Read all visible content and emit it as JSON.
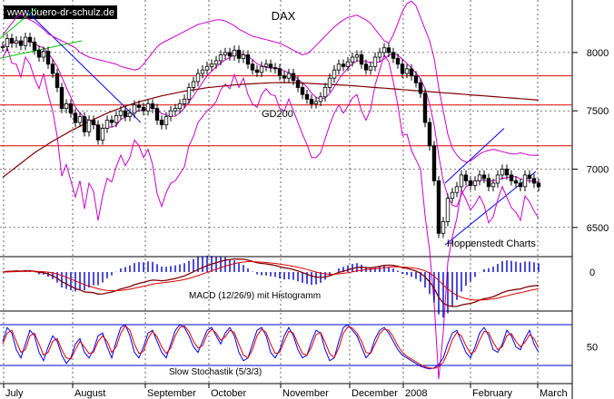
{
  "chart_data": {
    "type": "line",
    "title": "DAX",
    "watermark": "www.buero-dr-schulz.de",
    "source": "Hoppenstedt Charts",
    "x_labels": [
      "July",
      "August",
      "September",
      "October",
      "November",
      "December",
      "2008",
      "February",
      "March"
    ],
    "colors": {
      "candles": "#000000",
      "bollinger": "#cc00cc",
      "gd200": "#800000",
      "horizontal": "#dd0000",
      "trend_green": "#00cc00",
      "trend_blue": "#0000ff",
      "macd": "#800000",
      "signal": "#dd0000",
      "histogram": "#0000cc",
      "stoch_k": "#0000ff",
      "stoch_d": "#dd0000",
      "grid": "#000000"
    },
    "main": {
      "y_ticks": [
        8000,
        7500,
        7000,
        6500
      ],
      "ylim": [
        6250,
        8450
      ],
      "horizontal_lines": [
        7800,
        7550,
        7200
      ],
      "gd200_label": "GD200",
      "price": [
        8050,
        8120,
        8080,
        8100,
        8060,
        8130,
        8090,
        8020,
        7960,
        8010,
        7900,
        7820,
        7700,
        7520,
        7560,
        7480,
        7400,
        7450,
        7320,
        7420,
        7380,
        7250,
        7350,
        7420,
        7400,
        7460,
        7500,
        7450,
        7480,
        7550,
        7530,
        7500,
        7560,
        7520,
        7420,
        7380,
        7450,
        7500,
        7520,
        7560,
        7600,
        7700,
        7750,
        7820,
        7850,
        7880,
        7900,
        7930,
        7980,
        8000,
        7970,
        8020,
        7950,
        7980,
        7900,
        7850,
        7830,
        7880,
        7900,
        7870,
        7860,
        7800,
        7780,
        7820,
        7760,
        7700,
        7640,
        7600,
        7560,
        7580,
        7620,
        7700,
        7780,
        7850,
        7900,
        7880,
        7920,
        7960,
        7980,
        7900,
        7850,
        7880,
        7960,
        8000,
        8040,
        8000,
        7950,
        7900,
        7820,
        7860,
        7800,
        7740,
        7650,
        7400,
        7200,
        6900,
        6450,
        6550,
        6750,
        6800,
        6850,
        6950,
        6900,
        6860,
        6900,
        6950,
        6920,
        6850,
        6880,
        6950,
        7000,
        6950,
        6900,
        6880,
        6850,
        6950,
        6920,
        6880,
        6850
      ],
      "gd200": [
        6930,
        6960,
        6990,
        7020,
        7050,
        7080,
        7110,
        7140,
        7165,
        7190,
        7215,
        7240,
        7262,
        7284,
        7306,
        7328,
        7348,
        7368,
        7388,
        7408,
        7426,
        7444,
        7462,
        7480,
        7495,
        7510,
        7525,
        7540,
        7552,
        7564,
        7576,
        7588,
        7598,
        7608,
        7618,
        7628,
        7636,
        7644,
        7652,
        7660,
        7668,
        7674,
        7680,
        7686,
        7692,
        7698,
        7702,
        7706,
        7710,
        7714,
        7718,
        7722,
        7725,
        7728,
        7730,
        7732,
        7734,
        7736,
        7738,
        7740,
        7741,
        7742,
        7742,
        7742,
        7741,
        7740,
        7738,
        7736,
        7734,
        7732,
        7730,
        7728,
        7726,
        7724,
        7722,
        7720,
        7718,
        7715,
        7712,
        7709,
        7706,
        7703,
        7700,
        7697,
        7694,
        7691,
        7688,
        7685,
        7682,
        7679,
        7676,
        7673,
        7670,
        7667,
        7664,
        7661,
        7658,
        7655,
        7652,
        7649,
        7646,
        7643,
        7640,
        7637,
        7634,
        7631,
        7628,
        7625,
        7622,
        7619,
        7616,
        7613,
        7610,
        7607,
        7604,
        7601,
        7598,
        7595,
        7592
      ],
      "bb_upper": [
        8150,
        8200,
        8250,
        8300,
        8330,
        8300,
        8280,
        8260,
        8230,
        8200,
        8160,
        8140,
        8120,
        8100,
        8080,
        8060,
        8040,
        8000,
        7980,
        7960,
        7950,
        7940,
        7930,
        7920,
        7910,
        7900,
        7880,
        7870,
        7860,
        7850,
        7860,
        7900,
        7950,
        8000,
        8050,
        8080,
        8100,
        8120,
        8140,
        8160,
        8180,
        8200,
        8220,
        8240,
        8250,
        8260,
        8270,
        8280,
        8280,
        8270,
        8250,
        8230,
        8200,
        8180,
        8160,
        8140,
        8130,
        8120,
        8110,
        8100,
        8090,
        8080,
        8060,
        8040,
        8020,
        8000,
        7980,
        7990,
        8020,
        8060,
        8100,
        8140,
        8180,
        8220,
        8250,
        8280,
        8300,
        8310,
        8320,
        8300,
        8280,
        8250,
        8200,
        8150,
        8100,
        8080,
        8150,
        8250,
        8350,
        8420,
        8440,
        8400,
        8300,
        8200,
        8100,
        7950,
        7700,
        7500,
        7300,
        7180,
        7120,
        7080,
        7060,
        7070,
        7100,
        7130,
        7150,
        7160,
        7170,
        7160,
        7150,
        7140,
        7130,
        7130,
        7140,
        7130,
        7120,
        7120,
        7120
      ]
    },
    "macd": {
      "zero_label": "0",
      "label": "MACD (12/26/9) mit Histogramm"
    },
    "stochastic": {
      "y_tick": 50,
      "label": "Slow Stochastik (5/3/3)",
      "k": [
        60,
        85,
        75,
        45,
        30,
        55,
        80,
        70,
        40,
        25,
        50,
        70,
        60,
        35,
        20,
        30,
        55,
        65,
        40,
        30,
        45,
        70,
        75,
        50,
        30,
        60,
        85,
        90,
        70,
        40,
        30,
        50,
        75,
        80,
        60,
        40,
        30,
        55,
        80,
        90,
        85,
        70,
        50,
        40,
        60,
        80,
        85,
        70,
        55,
        75,
        85,
        70,
        40,
        25,
        30,
        55,
        80,
        85,
        70,
        40,
        30,
        45,
        70,
        85,
        70,
        45,
        30,
        35,
        60,
        80,
        75,
        45,
        25,
        30,
        60,
        85,
        90,
        80,
        70,
        50,
        30,
        40,
        65,
        80,
        85,
        75,
        60,
        45,
        35,
        30,
        25,
        20,
        15,
        12,
        10,
        12,
        18,
        30,
        55,
        75,
        80,
        60,
        40,
        30,
        50,
        75,
        85,
        70,
        45,
        40,
        55,
        80,
        70,
        50,
        45,
        65,
        80,
        55,
        40
      ],
      "d": [
        55,
        75,
        80,
        60,
        40,
        45,
        70,
        75,
        55,
        35,
        40,
        60,
        65,
        45,
        30,
        28,
        45,
        60,
        50,
        38,
        40,
        60,
        70,
        60,
        40,
        50,
        75,
        88,
        80,
        55,
        38,
        42,
        65,
        78,
        68,
        50,
        38,
        48,
        70,
        85,
        88,
        78,
        60,
        48,
        52,
        72,
        82,
        75,
        62,
        68,
        80,
        76,
        55,
        35,
        30,
        45,
        70,
        82,
        76,
        55,
        38,
        40,
        60,
        78,
        75,
        55,
        38,
        35,
        50,
        72,
        76,
        58,
        38,
        30,
        48,
        75,
        86,
        84,
        75,
        60,
        40,
        38,
        55,
        74,
        82,
        80,
        68,
        52,
        40,
        33,
        28,
        23,
        18,
        14,
        12,
        11,
        14,
        22,
        40,
        63,
        76,
        70,
        52,
        38,
        42,
        62,
        78,
        76,
        58,
        45,
        50,
        70,
        74,
        60,
        50,
        58,
        72,
        65,
        48
      ]
    }
  }
}
